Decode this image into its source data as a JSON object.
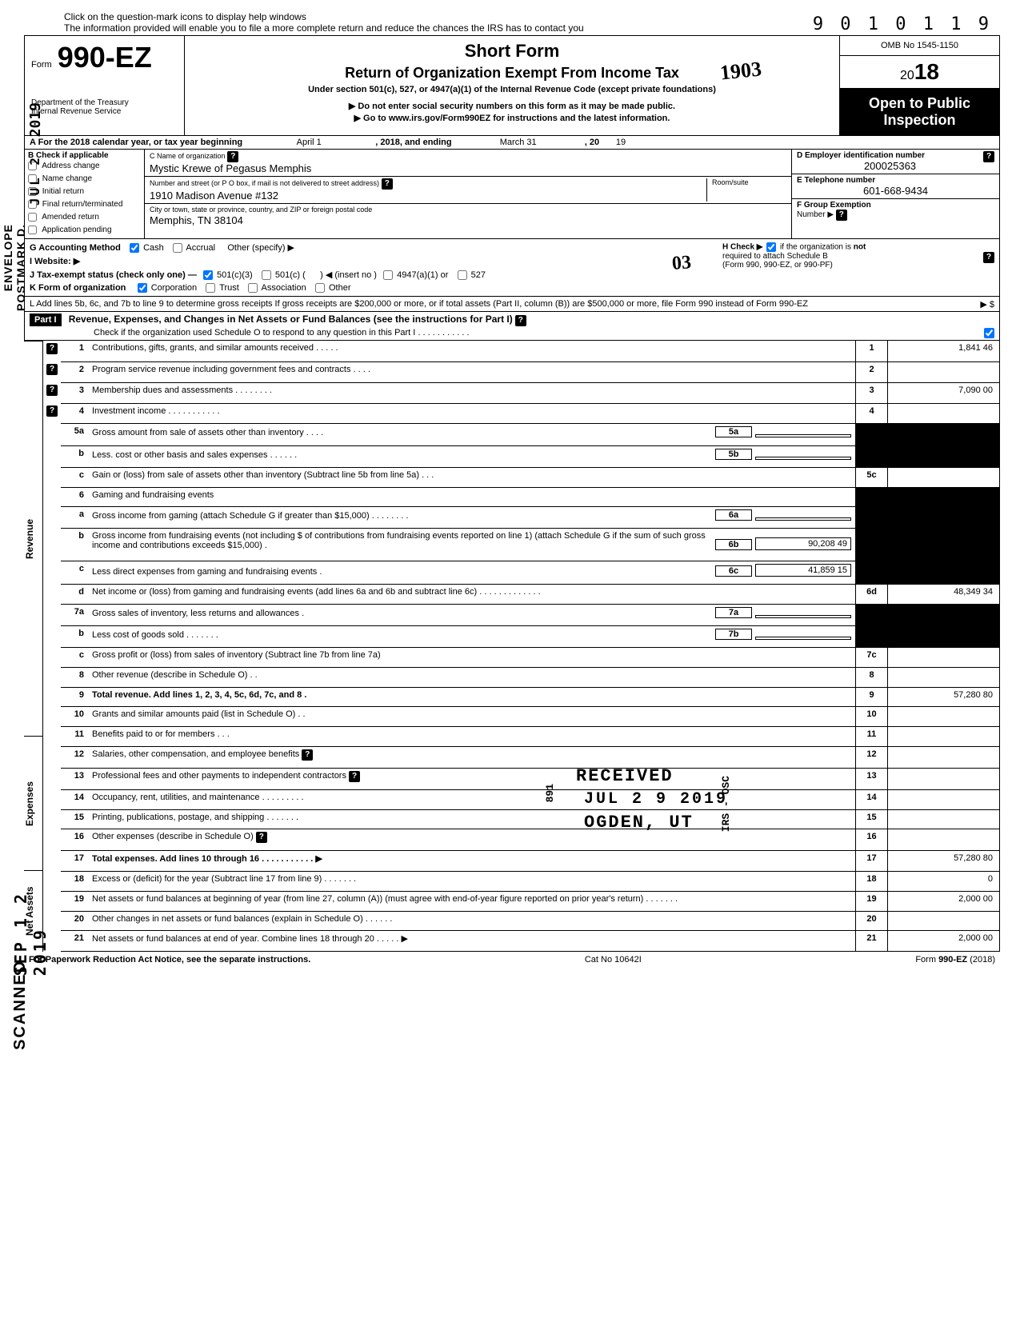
{
  "dln": "9 0 1 0 1 1   9",
  "hint_line1": "Click on the question-mark icons to display help windows",
  "hint_line2": "The information provided will enable you to file a more complete return and reduce the chances the IRS has to contact you",
  "form_label": "Form",
  "form_number": "990-EZ",
  "dept1": "Department of the Treasury",
  "dept2": "Internal Revenue Service",
  "short_form": "Short Form",
  "main_title": "Return of Organization Exempt From Income Tax",
  "subtitle": "Under section 501(c), 527, or 4947(a)(1) of the Internal Revenue Code (except private foundations)",
  "instr1": "▶ Do not enter social security numbers on this form as it may be made public.",
  "instr2": "▶ Go to www.irs.gov/Form990EZ for instructions and the latest information.",
  "omb": "OMB No 1545-1150",
  "tax_year": "18",
  "tax_year_prefix": "20",
  "open1": "Open to Public",
  "open2": "Inspection",
  "A": {
    "text1": "A  For the 2018 calendar year, or tax year beginning",
    "begin": "April 1",
    "text2": ", 2018, and ending",
    "end": "March 31",
    "text3": ", 20",
    "end_yr": "19"
  },
  "B": {
    "label": "B  Check if applicable",
    "opts": [
      "Address change",
      "Name change",
      "Initial return",
      "Final return/terminated",
      "Amended return",
      "Application pending"
    ]
  },
  "C": {
    "label": "C  Name of organization",
    "name": "Mystic Krewe of Pegasus Memphis",
    "addr_label": "Number and street (or P O  box, if mail is not delivered to street address)",
    "room_label": "Room/suite",
    "addr": "1910 Madison Avenue #132",
    "city_label": "City or town, state or province, country, and ZIP or foreign postal code",
    "city": "Memphis, TN  38104"
  },
  "D": {
    "label": "D  Employer identification number",
    "val": "200025363"
  },
  "E": {
    "label": "E  Telephone number",
    "val": "601-668-9434"
  },
  "F": {
    "label": "F  Group Exemption",
    "label2": "Number  ▶"
  },
  "G": {
    "label": "G  Accounting Method",
    "cash": "Cash",
    "accrual": "Accrual",
    "other": "Other (specify) ▶"
  },
  "H": {
    "text1": "H  Check ▶",
    "text2": "if the organization is",
    "text3": "not",
    "text4": "required to attach Schedule B",
    "text5": "(Form 990, 990-EZ, or 990-PF)"
  },
  "I": {
    "label": "I   Website: ▶"
  },
  "J": {
    "label": "J  Tax-exempt status (check only one) —",
    "o1": "501(c)(3)",
    "o2": "501(c) (",
    "o2b": ") ◀ (insert no )",
    "o3": "4947(a)(1) or",
    "o4": "527"
  },
  "K": {
    "label": "K  Form of organization",
    "o1": "Corporation",
    "o2": "Trust",
    "o3": "Association",
    "o4": "Other"
  },
  "L": {
    "text": "L  Add lines 5b, 6c, and 7b to line 9 to determine gross receipts  If gross receipts are $200,000 or more, or if total assets (Part II, column (B)) are $500,000 or more, file Form 990 instead of Form 990-EZ",
    "arrow": "▶  $"
  },
  "part1_label": "Part I",
  "part1_title": "Revenue, Expenses, and Changes in Net Assets or Fund Balances (see the instructions for Part I)",
  "part1_check": "Check if the organization used Schedule O to respond to any question in this Part I  .   .   .   .   .   .   .   .   .   .   .",
  "sections": {
    "revenue": "Revenue",
    "expenses": "Expenses",
    "netassets": "Net Assets"
  },
  "lines": {
    "1": {
      "n": "1",
      "d": "Contributions, gifts, grants, and similar amounts received     .         .            .        .         .",
      "amt": "1,841 46",
      "help": true
    },
    "2": {
      "n": "2",
      "d": "Program service revenue including government fees and contracts        .       .        .           .",
      "help": true
    },
    "3": {
      "n": "3",
      "d": "Membership dues and assessments .              .         .        .            .       .         .           .",
      "amt": "7,090 00",
      "help": true
    },
    "4": {
      "n": "4",
      "d": "Investment income      .         .            .       .       .         .        .            .        .         .           .",
      "help": true
    },
    "5a": {
      "n": "5a",
      "d": "Gross amount from sale of assets other than inventory     .    .    .     .",
      "ib": "5a"
    },
    "5b": {
      "n": "b",
      "d": "Less. cost or other basis and sales expenses .    .    .          .     .     .",
      "ib": "5b"
    },
    "5c": {
      "n": "c",
      "d": "Gain or (loss) from sale of assets other than inventory (Subtract line 5b from line 5a)  .      .     .",
      "box": "5c"
    },
    "6": {
      "n": "6",
      "d": "Gaming and fundraising events"
    },
    "6a": {
      "n": "a",
      "d": "Gross income from gaming (attach Schedule G if greater than $15,000)   .                .           .      .      .                   .      .     .",
      "ib": "6a"
    },
    "6b": {
      "n": "b",
      "d": "Gross income from fundraising events (not including  $                                 of contributions from fundraising events reported on line 1) (attach Schedule G if the sum of such gross income and contributions exceeds $15,000)    .",
      "ib": "6b",
      "ibamt": "90,208 49"
    },
    "6c": {
      "n": "c",
      "d": "Less  direct expenses from gaming and fundraising events           .",
      "ib": "6c",
      "ibamt": "41,859 15"
    },
    "6d": {
      "n": "d",
      "d": "Net income or (loss) from gaming and fundraising events (add lines 6a and 6b and subtract line 6c)          .            .        .           .             .       .          .       .           .        .       .         .     .",
      "box": "6d",
      "amt": "48,349 34"
    },
    "7a": {
      "n": "7a",
      "d": "Gross sales of inventory, less returns and allowances         .",
      "ib": "7a"
    },
    "7b": {
      "n": "b",
      "d": "Less  cost of goods sold         .      .      .            .     .           .      .",
      "ib": "7b"
    },
    "7c": {
      "n": "c",
      "d": "Gross profit or (loss) from sales of inventory (Subtract line 7b from line 7a)",
      "box": "7c"
    },
    "8": {
      "n": "8",
      "d": "Other revenue (describe in Schedule O) .    .",
      "box": "8"
    },
    "9": {
      "n": "9",
      "d": "Total revenue. Add lines 1, 2, 3, 4, 5c, 6d, 7c, and 8   .",
      "box": "9",
      "amt": "57,280 80",
      "bold": true
    },
    "10": {
      "n": "10",
      "d": "Grants and similar amounts paid (list in Schedule O)         .      .",
      "box": "10"
    },
    "11": {
      "n": "11",
      "d": "Benefits paid to or for members     .    .              .",
      "box": "11"
    },
    "12": {
      "n": "12",
      "d": "Salaries, other compensation, and employee benefits",
      "box": "12",
      "help2": true
    },
    "13": {
      "n": "13",
      "d": "Professional fees and other payments to independent contractors",
      "box": "13",
      "help2": true
    },
    "14": {
      "n": "14",
      "d": "Occupancy, rent, utilities, and maintenance            .    .    .    .     .          .       .      .           .",
      "box": "14"
    },
    "15": {
      "n": "15",
      "d": "Printing, publications, postage, and shipping             .       .        .            .       .        .           .",
      "box": "15"
    },
    "16": {
      "n": "16",
      "d": "Other expenses (describe in Schedule O)",
      "box": "16",
      "help2": true
    },
    "17": {
      "n": "17",
      "d": "Total expenses. Add lines 10 through 16 .    .       .     .          .       .       .      .      .      .      .        ▶",
      "box": "17",
      "amt": "57,280 80",
      "bold": true
    },
    "18": {
      "n": "18",
      "d": "Excess or (deficit) for the year (Subtract line 17 from line 9)          .      .      .       .          .      .     .",
      "box": "18",
      "amt": "0"
    },
    "19": {
      "n": "19",
      "d": "Net assets or fund balances at beginning of year (from line 27, column (A)) (must agree with end-of-year figure reported on prior year's return)                 .          .       .       .      .           .     .",
      "box": "19",
      "amt": "2,000 00"
    },
    "20": {
      "n": "20",
      "d": "Other changes in net assets or fund balances (explain in Schedule O)        .    .    .    .          .     .",
      "box": "20"
    },
    "21": {
      "n": "21",
      "d": "Net assets or fund balances at end of year. Combine lines 18 through 20      .    .    .    .           .  ▶",
      "box": "21",
      "amt": "2,000 00"
    }
  },
  "footer": {
    "left": "For Paperwork Reduction Act Notice, see the separate instructions.",
    "mid": "Cat  No  10642I",
    "right_a": "Form ",
    "right_b": "990-EZ",
    "right_c": " (2018)"
  },
  "stamps": {
    "received": "RECEIVED",
    "date": "JUL  2 9  2019",
    "ogden": "OGDEN, UT",
    "v891": "891",
    "irsosc": "IRS - OSC",
    "scanned": "SCANNED",
    "sep": "SEP 1 2 2019",
    "envelope": "ENVELOPE",
    "postmark": "POSTMARK D.",
    "jul": "JUL   2",
    "y2019a": "2019",
    "hand1903": "1903",
    "hand03": "03"
  }
}
